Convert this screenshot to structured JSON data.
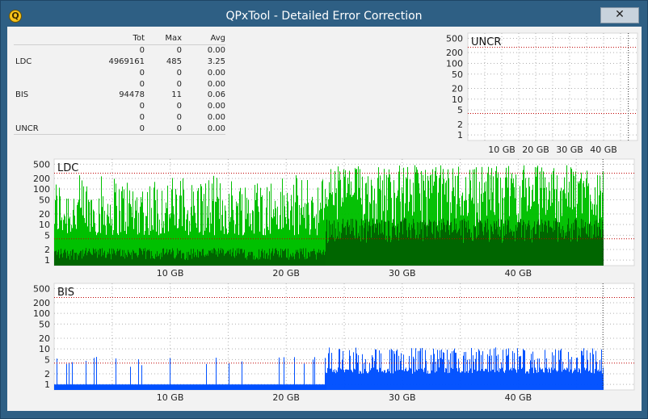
{
  "window": {
    "title": "QPxTool - Detailed Error Correction",
    "close_glyph": "✕",
    "icon_letter": "Q"
  },
  "stats": {
    "headers": [
      "",
      "Tot",
      "Max",
      "Avg"
    ],
    "rows": [
      [
        "",
        "0",
        "0",
        "0.00"
      ],
      [
        "LDC",
        "4969161",
        "485",
        "3.25"
      ],
      [
        "",
        "0",
        "0",
        "0.00"
      ],
      [
        "",
        "0",
        "0",
        "0.00"
      ],
      [
        "BIS",
        "94478",
        "11",
        "0.06"
      ],
      [
        "",
        "0",
        "0",
        "0.00"
      ],
      [
        "",
        "0",
        "0",
        "0.00"
      ],
      [
        "UNCR",
        "0",
        "0",
        "0.00"
      ]
    ]
  },
  "colors": {
    "ldc_light": "#00c000",
    "ldc_dark": "#006400",
    "bis": "#0050ff",
    "threshold": "#c00000",
    "grid": "#b0b0b0"
  },
  "chart_data": [
    {
      "name": "uncr-chart",
      "type": "bar",
      "title": "UNCR",
      "y_scale": "log",
      "ylim": [
        1,
        700
      ],
      "y_ticks": [
        "500",
        "200",
        "100",
        "50",
        "20",
        "10",
        "5",
        "2",
        "1"
      ],
      "x_ticks": [
        "10 GB",
        "20 GB",
        "30 GB",
        "40 GB"
      ],
      "xlim_gb": [
        0,
        50
      ],
      "data_end_gb": 47.3,
      "thresholds": [
        280,
        4
      ],
      "series": []
    },
    {
      "name": "ldc-chart",
      "type": "bar",
      "title": "LDC",
      "y_scale": "log",
      "ylim": [
        1,
        700
      ],
      "y_ticks": [
        "500",
        "200",
        "100",
        "50",
        "20",
        "10",
        "5",
        "2",
        "1"
      ],
      "x_ticks": [
        "10 GB",
        "20 GB",
        "30 GB",
        "40 GB"
      ],
      "xlim_gb": [
        0,
        50
      ],
      "data_end_gb": 47.3,
      "thresholds": [
        280,
        4
      ],
      "series": [
        {
          "segments": [
            {
              "from_gb": 0,
              "to_gb": 23.4,
              "peak": [
                40,
                250
              ],
              "base": [
                1,
                2
              ],
              "dense": false
            },
            {
              "from_gb": 23.4,
              "to_gb": 47.3,
              "peak": [
                60,
                485
              ],
              "base": [
                3,
                15
              ],
              "dense": true
            }
          ]
        }
      ]
    },
    {
      "name": "bis-chart",
      "type": "bar",
      "title": "BIS",
      "y_scale": "log",
      "ylim": [
        1,
        700
      ],
      "y_ticks": [
        "500",
        "200",
        "100",
        "50",
        "20",
        "10",
        "5",
        "2",
        "1"
      ],
      "x_ticks": [
        "10 GB",
        "20 GB",
        "30 GB",
        "40 GB"
      ],
      "xlim_gb": [
        0,
        50
      ],
      "data_end_gb": 47.3,
      "thresholds": [
        280,
        4
      ],
      "series": [
        {
          "segments": [
            {
              "from_gb": 0,
              "to_gb": 23.4,
              "peak": [
                3,
                6
              ],
              "base": [
                1,
                1
              ],
              "dense": false
            },
            {
              "from_gb": 23.4,
              "to_gb": 47.3,
              "peak": [
                4,
                11
              ],
              "base": [
                2,
                3
              ],
              "dense": true
            }
          ]
        }
      ]
    }
  ]
}
